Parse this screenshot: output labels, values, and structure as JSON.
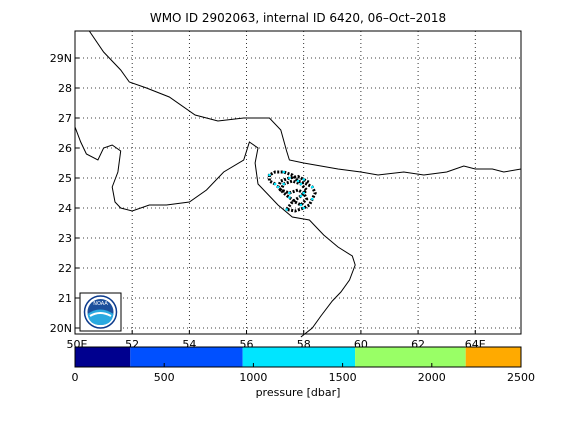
{
  "title": "WMO ID 2902063, internal ID 6420, 06–Oct–2018",
  "map": {
    "lon_ticks": [
      {
        "value": 50,
        "label": "50E"
      },
      {
        "value": 52,
        "label": "52"
      },
      {
        "value": 54,
        "label": "54"
      },
      {
        "value": 56,
        "label": "56"
      },
      {
        "value": 58,
        "label": "58"
      },
      {
        "value": 60,
        "label": "60"
      },
      {
        "value": 62,
        "label": "62"
      },
      {
        "value": 64,
        "label": "64E"
      }
    ],
    "lat_ticks": [
      {
        "value": 20,
        "label": "20N"
      },
      {
        "value": 21,
        "label": "21"
      },
      {
        "value": 22,
        "label": "22"
      },
      {
        "value": 23,
        "label": "23"
      },
      {
        "value": 24,
        "label": "24"
      },
      {
        "value": 25,
        "label": "25"
      },
      {
        "value": 26,
        "label": "26"
      },
      {
        "value": 27,
        "label": "27"
      },
      {
        "value": 28,
        "label": "28"
      },
      {
        "value": 29,
        "label": "29N"
      }
    ],
    "lon_range": [
      50,
      65.6
    ],
    "lat_range": [
      19.8,
      29.9
    ],
    "grid": true,
    "logo_text": "NOAA",
    "coastline_color": "#000000"
  },
  "colorbar": {
    "label": "pressure [dbar]",
    "range": [
      0,
      2500
    ],
    "ticks": [
      {
        "value": 0,
        "label": "0"
      },
      {
        "value": 500,
        "label": "500"
      },
      {
        "value": 1000,
        "label": "1000"
      },
      {
        "value": 1500,
        "label": "1500"
      },
      {
        "value": 2000,
        "label": "2000"
      },
      {
        "value": 2500,
        "label": "2500"
      }
    ],
    "segments": [
      {
        "from": 0,
        "to": 310,
        "color": "#00008f"
      },
      {
        "from": 310,
        "to": 940,
        "color": "#0050ff"
      },
      {
        "from": 940,
        "to": 1570,
        "color": "#00e5ff"
      },
      {
        "from": 1570,
        "to": 2190,
        "color": "#99ff66"
      },
      {
        "from": 2190,
        "to": 2500,
        "color": "#ffaa00"
      }
    ]
  },
  "coastlines": [
    [
      [
        50.5,
        29.9
      ],
      [
        51.0,
        29.2
      ],
      [
        51.6,
        28.6
      ],
      [
        51.9,
        28.2
      ],
      [
        52.5,
        28.0
      ],
      [
        53.3,
        27.7
      ],
      [
        54.2,
        27.1
      ],
      [
        55.0,
        26.9
      ],
      [
        55.9,
        27.0
      ],
      [
        56.8,
        27.0
      ],
      [
        57.2,
        26.6
      ],
      [
        57.4,
        25.9
      ],
      [
        57.5,
        25.6
      ],
      [
        58.0,
        25.5
      ],
      [
        58.6,
        25.4
      ],
      [
        59.2,
        25.3
      ],
      [
        60.0,
        25.2
      ],
      [
        60.6,
        25.1
      ],
      [
        61.5,
        25.2
      ],
      [
        62.2,
        25.1
      ],
      [
        63.0,
        25.2
      ],
      [
        63.6,
        25.4
      ],
      [
        64.0,
        25.3
      ],
      [
        64.6,
        25.3
      ],
      [
        65.0,
        25.2
      ],
      [
        65.6,
        25.3
      ]
    ],
    [
      [
        50.0,
        26.7
      ],
      [
        50.2,
        26.2
      ],
      [
        50.4,
        25.8
      ],
      [
        50.8,
        25.6
      ],
      [
        51.0,
        26.0
      ],
      [
        51.3,
        26.1
      ],
      [
        51.6,
        25.9
      ],
      [
        51.5,
        25.2
      ],
      [
        51.3,
        24.7
      ],
      [
        51.4,
        24.2
      ],
      [
        51.6,
        24.0
      ],
      [
        52.0,
        23.9
      ],
      [
        52.6,
        24.1
      ],
      [
        53.2,
        24.1
      ],
      [
        54.0,
        24.2
      ],
      [
        54.6,
        24.6
      ],
      [
        55.2,
        25.2
      ],
      [
        55.9,
        25.6
      ],
      [
        56.1,
        26.2
      ],
      [
        56.4,
        26.0
      ],
      [
        56.3,
        25.5
      ],
      [
        56.4,
        24.8
      ],
      [
        56.7,
        24.5
      ],
      [
        57.1,
        24.1
      ],
      [
        57.6,
        23.7
      ],
      [
        58.2,
        23.6
      ],
      [
        58.7,
        23.1
      ],
      [
        59.2,
        22.7
      ],
      [
        59.7,
        22.4
      ],
      [
        59.8,
        22.1
      ],
      [
        59.6,
        21.6
      ],
      [
        59.3,
        21.2
      ],
      [
        59.0,
        20.9
      ],
      [
        58.6,
        20.4
      ],
      [
        58.3,
        20.0
      ],
      [
        57.9,
        19.7
      ]
    ]
  ],
  "trajectory": [
    [
      57.0,
      24.8
    ],
    [
      56.8,
      24.9
    ],
    [
      56.8,
      25.1
    ],
    [
      57.0,
      25.2
    ],
    [
      57.3,
      25.2
    ],
    [
      57.6,
      25.1
    ],
    [
      57.8,
      24.9
    ],
    [
      58.1,
      24.8
    ],
    [
      58.3,
      24.7
    ],
    [
      58.4,
      24.5
    ],
    [
      58.3,
      24.3
    ],
    [
      58.2,
      24.1
    ],
    [
      58.0,
      24.0
    ],
    [
      57.7,
      23.9
    ],
    [
      57.4,
      23.95
    ],
    [
      57.6,
      24.2
    ],
    [
      57.9,
      24.4
    ],
    [
      58.1,
      24.6
    ],
    [
      57.9,
      24.8
    ],
    [
      57.6,
      24.9
    ],
    [
      57.3,
      24.8
    ],
    [
      57.2,
      24.6
    ],
    [
      57.5,
      24.5
    ],
    [
      57.8,
      24.6
    ],
    [
      58.0,
      24.5
    ],
    [
      58.1,
      24.3
    ],
    [
      57.9,
      24.1
    ],
    [
      57.7,
      24.2
    ],
    [
      57.5,
      24.35
    ],
    [
      57.3,
      24.5
    ],
    [
      57.1,
      24.7
    ],
    [
      57.2,
      24.9
    ],
    [
      57.5,
      25.0
    ],
    [
      57.8,
      25.05
    ],
    [
      58.0,
      24.95
    ],
    [
      58.2,
      24.85
    ]
  ]
}
